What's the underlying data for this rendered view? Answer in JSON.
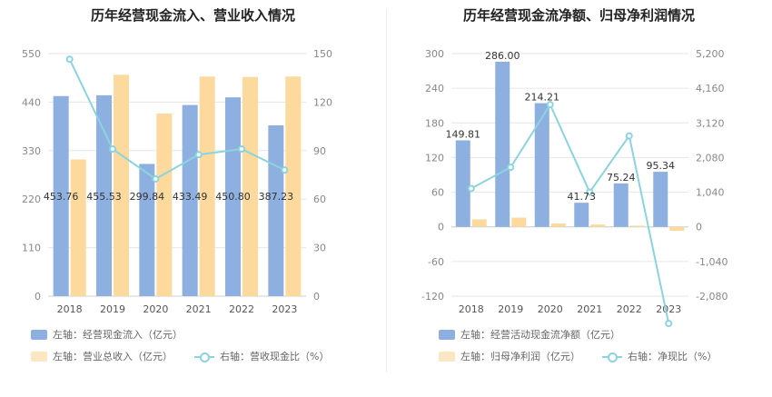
{
  "chart_data": [
    {
      "type": "bar",
      "title": "历年经营现金流入、营业收入情况",
      "categories": [
        "2018",
        "2019",
        "2020",
        "2021",
        "2022",
        "2023"
      ],
      "left_axis": {
        "min": 0,
        "max": 550,
        "ticks": [
          "0",
          "110",
          "220",
          "330",
          "440",
          "550"
        ]
      },
      "right_axis": {
        "min": 0,
        "max": 150,
        "ticks": [
          "0",
          "30",
          "60",
          "90",
          "120",
          "150"
        ]
      },
      "series": [
        {
          "name": "左轴：经营现金流入（亿元）",
          "type": "bar",
          "axis": "left",
          "color": "#8eb0e0",
          "values": [
            453.76,
            455.53,
            299.84,
            433.49,
            450.8,
            387.23
          ],
          "labels": [
            "453.76",
            "455.53",
            "299.84",
            "433.49",
            "450.80",
            "387.23"
          ]
        },
        {
          "name": "左轴：营业总收入（亿元）",
          "type": "bar",
          "axis": "left",
          "color": "#fcd99c",
          "values": [
            310,
            502,
            414,
            498,
            497,
            498
          ]
        },
        {
          "name": "右轴：营收现金比（%）",
          "type": "line",
          "axis": "right",
          "color": "#8ad4df",
          "values": [
            146.5,
            91.0,
            72.5,
            87.5,
            91.0,
            78.0
          ]
        }
      ]
    },
    {
      "type": "bar",
      "title": "历年经营现金流净额、归母净利润情况",
      "categories": [
        "2018",
        "2019",
        "2020",
        "2021",
        "2022",
        "2023"
      ],
      "left_axis": {
        "min": -120,
        "max": 300,
        "ticks": [
          "-120",
          "-60",
          "0",
          "60",
          "120",
          "180",
          "240",
          "300"
        ]
      },
      "right_axis": {
        "min": -2080,
        "max": 5200,
        "ticks": [
          "-2,080",
          "-1,040",
          "0",
          "1,040",
          "2,080",
          "3,120",
          "4,160",
          "5,200"
        ]
      },
      "series": [
        {
          "name": "左轴：经营活动现金流净额（亿元）",
          "type": "bar",
          "axis": "left",
          "color": "#8eb0e0",
          "values": [
            149.81,
            286.0,
            214.21,
            41.73,
            75.24,
            95.34
          ],
          "labels": [
            "149.81",
            "286.00",
            "214.21",
            "41.73",
            "75.24",
            "95.34"
          ]
        },
        {
          "name": "左轴：归母净利润（亿元）",
          "type": "bar",
          "axis": "left",
          "color": "#fcd99c",
          "values": [
            13,
            16,
            6,
            4,
            2,
            -7
          ]
        },
        {
          "name": "右轴：净现比（%）",
          "type": "line",
          "axis": "right",
          "color": "#8ad4df",
          "values": [
            1152,
            1788,
            3668,
            1043,
            2730,
            -2900
          ]
        }
      ]
    }
  ]
}
